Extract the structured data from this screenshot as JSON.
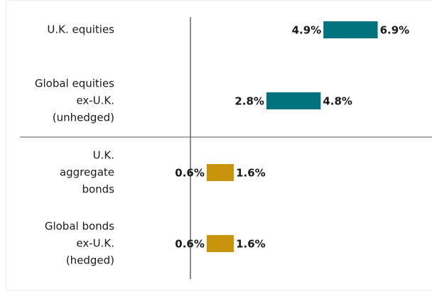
{
  "chart_data": {
    "type": "range-bar",
    "categories": [
      [
        "U.K. equities"
      ],
      [
        "Global equities",
        "ex-U.K.",
        "(unhedged)"
      ],
      [
        "U.K.",
        "aggregate",
        "bonds"
      ],
      [
        "Global bonds",
        "ex-U.K.",
        "(hedged)"
      ]
    ],
    "lows": {
      "values": [
        4.9,
        2.8,
        0.6,
        0.6
      ],
      "value_labels": [
        "4.9%",
        "2.8%",
        "0.6%",
        "0.6%"
      ]
    },
    "highs": {
      "values": [
        6.9,
        4.8,
        1.6,
        1.6
      ],
      "value_labels": [
        "6.9%",
        "4.8%",
        "1.6%",
        "1.6%"
      ]
    },
    "colors": [
      "#00737f",
      "#00737f",
      "#c8940c",
      "#c8940c"
    ]
  }
}
